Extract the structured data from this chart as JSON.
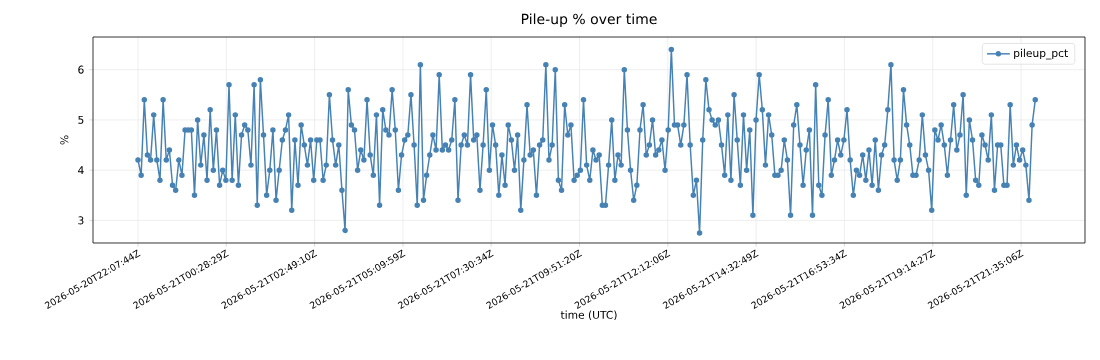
{
  "chart_data": {
    "type": "line",
    "title": "Pile-up % over time",
    "xlabel": "time (UTC)",
    "ylabel": "%",
    "xlim": [
      "2026-05-20T20:56",
      "2026-05-21T23:17"
    ],
    "ylim": [
      2.55,
      6.65
    ],
    "xticks": [
      {
        "value": "2026-05-20T22:07:44",
        "label": "2026-05-20T22:07:44Z"
      },
      {
        "value": "2026-05-21T00:28:29",
        "label": "2026-05-21T00:28:29Z"
      },
      {
        "value": "2026-05-21T02:49:10",
        "label": "2026-05-21T02:49:10Z"
      },
      {
        "value": "2026-05-21T05:09:59",
        "label": "2026-05-21T05:09:59Z"
      },
      {
        "value": "2026-05-21T07:30:34",
        "label": "2026-05-21T07:30:34Z"
      },
      {
        "value": "2026-05-21T09:51:20",
        "label": "2026-05-21T09:51:20Z"
      },
      {
        "value": "2026-05-21T12:12:06",
        "label": "2026-05-21T12:12:06Z"
      },
      {
        "value": "2026-05-21T14:32:49",
        "label": "2026-05-21T14:32:49Z"
      },
      {
        "value": "2026-05-21T16:53:34",
        "label": "2026-05-21T16:53:34Z"
      },
      {
        "value": "2026-05-21T19:14:27",
        "label": "2026-05-21T19:14:27Z"
      },
      {
        "value": "2026-05-21T21:35:06",
        "label": "2026-05-21T21:35:06Z"
      }
    ],
    "yticks": [
      3,
      4,
      5,
      6
    ],
    "grid": true,
    "legend": "top right",
    "marker": "circle",
    "line_style": "solid",
    "x": [
      "2026-05-20T22:07:44",
      "2026-05-20T22:12:44",
      "2026-05-20T22:17:44",
      "2026-05-20T22:22:44",
      "2026-05-20T22:27:44",
      "2026-05-20T22:32:44",
      "2026-05-20T22:37:44",
      "2026-05-20T22:42:44",
      "2026-05-20T22:47:44",
      "2026-05-20T22:52:44",
      "2026-05-20T22:57:44",
      "2026-05-20T23:02:44",
      "2026-05-20T23:07:44",
      "2026-05-20T23:12:44",
      "2026-05-20T23:17:44",
      "2026-05-20T23:22:44",
      "2026-05-20T23:27:44",
      "2026-05-20T23:32:44",
      "2026-05-20T23:37:44",
      "2026-05-20T23:42:44",
      "2026-05-20T23:47:44",
      "2026-05-20T23:52:44",
      "2026-05-20T23:57:44",
      "2026-05-21T00:02:44",
      "2026-05-21T00:07:44",
      "2026-05-21T00:12:44",
      "2026-05-21T00:17:44",
      "2026-05-21T00:22:44",
      "2026-05-21T00:27:44",
      "2026-05-21T00:32:44",
      "2026-05-21T00:37:44",
      "2026-05-21T00:42:44",
      "2026-05-21T00:47:44",
      "2026-05-21T00:52:44",
      "2026-05-21T00:57:44",
      "2026-05-21T01:02:44",
      "2026-05-21T01:07:44",
      "2026-05-21T01:12:44",
      "2026-05-21T01:17:44",
      "2026-05-21T01:22:44",
      "2026-05-21T01:27:44",
      "2026-05-21T01:32:44",
      "2026-05-21T01:37:44",
      "2026-05-21T01:42:44",
      "2026-05-21T01:47:44",
      "2026-05-21T01:52:44",
      "2026-05-21T01:57:44",
      "2026-05-21T02:02:44",
      "2026-05-21T02:07:44",
      "2026-05-21T02:12:44",
      "2026-05-21T02:17:44",
      "2026-05-21T02:22:44",
      "2026-05-21T02:27:44",
      "2026-05-21T02:32:44",
      "2026-05-21T02:37:44",
      "2026-05-21T02:42:44",
      "2026-05-21T02:47:44",
      "2026-05-21T02:52:44",
      "2026-05-21T02:57:44",
      "2026-05-21T03:02:44",
      "2026-05-21T03:07:44",
      "2026-05-21T03:12:44",
      "2026-05-21T03:17:44",
      "2026-05-21T03:22:44",
      "2026-05-21T03:27:44",
      "2026-05-21T03:32:44",
      "2026-05-21T03:37:44",
      "2026-05-21T03:42:44",
      "2026-05-21T03:47:44",
      "2026-05-21T03:52:44",
      "2026-05-21T03:57:44",
      "2026-05-21T04:02:44",
      "2026-05-21T04:07:44",
      "2026-05-21T04:12:44",
      "2026-05-21T04:17:44",
      "2026-05-21T04:22:44",
      "2026-05-21T04:27:44",
      "2026-05-21T04:32:44",
      "2026-05-21T04:37:44",
      "2026-05-21T04:42:44",
      "2026-05-21T04:47:44",
      "2026-05-21T04:52:44",
      "2026-05-21T04:57:44",
      "2026-05-21T05:02:44",
      "2026-05-21T05:07:44",
      "2026-05-21T05:12:44",
      "2026-05-21T05:17:44",
      "2026-05-21T05:22:44",
      "2026-05-21T05:27:44",
      "2026-05-21T05:32:44",
      "2026-05-21T05:37:44",
      "2026-05-21T05:42:44",
      "2026-05-21T05:47:44",
      "2026-05-21T05:52:44",
      "2026-05-21T05:57:44",
      "2026-05-21T06:02:44",
      "2026-05-21T06:07:44",
      "2026-05-21T06:12:44",
      "2026-05-21T06:17:44",
      "2026-05-21T06:22:44",
      "2026-05-21T06:27:44",
      "2026-05-21T06:32:44",
      "2026-05-21T06:37:44",
      "2026-05-21T06:42:44",
      "2026-05-21T06:47:44",
      "2026-05-21T06:52:44",
      "2026-05-21T06:57:44",
      "2026-05-21T07:02:44",
      "2026-05-21T07:07:44",
      "2026-05-21T07:12:44",
      "2026-05-21T07:17:44",
      "2026-05-21T07:22:44",
      "2026-05-21T07:27:44",
      "2026-05-21T07:32:44",
      "2026-05-21T07:37:44",
      "2026-05-21T07:42:44",
      "2026-05-21T07:47:44",
      "2026-05-21T07:52:44",
      "2026-05-21T07:57:44",
      "2026-05-21T08:02:44",
      "2026-05-21T08:07:44",
      "2026-05-21T08:12:44",
      "2026-05-21T08:17:44",
      "2026-05-21T08:22:44",
      "2026-05-21T08:27:44",
      "2026-05-21T08:32:44",
      "2026-05-21T08:37:44",
      "2026-05-21T08:42:44",
      "2026-05-21T08:47:44",
      "2026-05-21T08:52:44",
      "2026-05-21T08:57:44",
      "2026-05-21T09:02:44",
      "2026-05-21T09:07:44",
      "2026-05-21T09:12:44",
      "2026-05-21T09:17:44",
      "2026-05-21T09:22:44",
      "2026-05-21T09:27:44",
      "2026-05-21T09:32:44",
      "2026-05-21T09:37:44",
      "2026-05-21T09:42:44",
      "2026-05-21T09:47:44",
      "2026-05-21T09:52:44",
      "2026-05-21T09:57:44",
      "2026-05-21T10:02:44",
      "2026-05-21T10:07:44",
      "2026-05-21T10:12:44",
      "2026-05-21T10:17:44",
      "2026-05-21T10:22:44",
      "2026-05-21T10:27:44",
      "2026-05-21T10:32:44",
      "2026-05-21T10:37:44",
      "2026-05-21T10:42:44",
      "2026-05-21T10:47:44",
      "2026-05-21T10:52:44",
      "2026-05-21T10:57:44",
      "2026-05-21T11:02:44",
      "2026-05-21T11:07:44",
      "2026-05-21T11:12:44",
      "2026-05-21T11:17:44",
      "2026-05-21T11:22:44",
      "2026-05-21T11:27:44",
      "2026-05-21T11:32:44",
      "2026-05-21T11:37:44",
      "2026-05-21T11:42:44",
      "2026-05-21T11:47:44",
      "2026-05-21T11:52:44",
      "2026-05-21T11:57:44",
      "2026-05-21T12:02:44",
      "2026-05-21T12:07:44",
      "2026-05-21T12:12:44",
      "2026-05-21T12:17:44",
      "2026-05-21T12:22:44",
      "2026-05-21T12:27:44",
      "2026-05-21T12:32:44",
      "2026-05-21T12:37:44",
      "2026-05-21T12:42:44",
      "2026-05-21T12:47:44",
      "2026-05-21T12:52:44",
      "2026-05-21T12:57:44",
      "2026-05-21T13:02:44",
      "2026-05-21T13:07:44",
      "2026-05-21T13:12:44",
      "2026-05-21T13:17:44",
      "2026-05-21T13:22:44",
      "2026-05-21T13:27:44",
      "2026-05-21T13:32:44",
      "2026-05-21T13:37:44",
      "2026-05-21T13:42:44",
      "2026-05-21T13:47:44",
      "2026-05-21T13:52:44",
      "2026-05-21T13:57:44",
      "2026-05-21T14:02:44",
      "2026-05-21T14:07:44",
      "2026-05-21T14:12:44",
      "2026-05-21T14:17:44",
      "2026-05-21T14:22:44",
      "2026-05-21T14:27:44",
      "2026-05-21T14:32:44",
      "2026-05-21T14:37:44",
      "2026-05-21T14:42:44",
      "2026-05-21T14:47:44",
      "2026-05-21T14:52:44",
      "2026-05-21T14:57:44",
      "2026-05-21T15:02:44",
      "2026-05-21T15:07:44",
      "2026-05-21T15:12:44",
      "2026-05-21T15:17:44",
      "2026-05-21T15:22:44",
      "2026-05-21T15:27:44",
      "2026-05-21T15:32:44",
      "2026-05-21T15:37:44",
      "2026-05-21T15:42:44",
      "2026-05-21T15:47:44",
      "2026-05-21T15:52:44",
      "2026-05-21T15:57:44",
      "2026-05-21T16:02:44",
      "2026-05-21T16:07:44",
      "2026-05-21T16:12:44",
      "2026-05-21T16:17:44",
      "2026-05-21T16:22:44",
      "2026-05-21T16:27:44",
      "2026-05-21T16:32:44",
      "2026-05-21T16:37:44",
      "2026-05-21T16:42:44",
      "2026-05-21T16:47:44",
      "2026-05-21T16:52:44",
      "2026-05-21T16:57:44",
      "2026-05-21T17:02:44",
      "2026-05-21T17:07:44",
      "2026-05-21T17:12:44",
      "2026-05-21T17:17:44",
      "2026-05-21T17:22:44",
      "2026-05-21T17:27:44",
      "2026-05-21T17:32:44",
      "2026-05-21T17:37:44",
      "2026-05-21T17:42:44",
      "2026-05-21T17:47:44",
      "2026-05-21T17:52:44",
      "2026-05-21T17:57:44",
      "2026-05-21T18:02:44",
      "2026-05-21T18:07:44",
      "2026-05-21T18:12:44",
      "2026-05-21T18:17:44",
      "2026-05-21T18:22:44",
      "2026-05-21T18:27:44",
      "2026-05-21T18:32:44",
      "2026-05-21T18:37:44",
      "2026-05-21T18:42:44",
      "2026-05-21T18:47:44",
      "2026-05-21T18:52:44",
      "2026-05-21T18:57:44",
      "2026-05-21T19:02:44",
      "2026-05-21T19:07:44",
      "2026-05-21T19:12:44",
      "2026-05-21T19:17:44",
      "2026-05-21T19:22:44",
      "2026-05-21T19:27:44",
      "2026-05-21T19:32:44",
      "2026-05-21T19:37:44",
      "2026-05-21T19:42:44",
      "2026-05-21T19:47:44",
      "2026-05-21T19:52:44",
      "2026-05-21T19:57:44",
      "2026-05-21T20:02:44",
      "2026-05-21T20:07:44",
      "2026-05-21T20:12:44",
      "2026-05-21T20:17:44",
      "2026-05-21T20:22:44",
      "2026-05-21T20:27:44",
      "2026-05-21T20:32:44",
      "2026-05-21T20:37:44",
      "2026-05-21T20:42:44",
      "2026-05-21T20:47:44",
      "2026-05-21T20:52:44",
      "2026-05-21T20:57:44",
      "2026-05-21T21:02:44",
      "2026-05-21T21:07:44",
      "2026-05-21T21:12:44",
      "2026-05-21T21:17:44",
      "2026-05-21T21:22:44",
      "2026-05-21T21:27:44",
      "2026-05-21T21:32:44",
      "2026-05-21T21:37:44",
      "2026-05-21T21:42:44",
      "2026-05-21T21:47:44",
      "2026-05-21T21:52:44",
      "2026-05-21T21:57:44"
    ],
    "series": [
      {
        "name": "pileup_pct",
        "color": "#4682b4",
        "values": [
          4.2,
          3.9,
          5.4,
          4.3,
          4.2,
          5.1,
          4.2,
          3.8,
          5.4,
          4.2,
          4.4,
          3.7,
          3.6,
          4.2,
          3.9,
          4.8,
          4.8,
          4.8,
          3.5,
          5.0,
          4.1,
          4.7,
          3.8,
          5.2,
          4.0,
          4.8,
          3.7,
          4.0,
          3.8,
          5.7,
          3.8,
          5.1,
          3.7,
          4.7,
          4.9,
          4.8,
          4.1,
          5.7,
          3.3,
          5.8,
          4.7,
          3.5,
          4.0,
          4.8,
          3.4,
          4.0,
          4.6,
          4.8,
          5.1,
          3.2,
          4.6,
          3.7,
          4.9,
          4.5,
          4.1,
          4.6,
          3.8,
          4.6,
          4.6,
          3.8,
          4.1,
          5.5,
          4.6,
          4.1,
          4.5,
          3.6,
          2.8,
          5.6,
          4.9,
          4.8,
          4.0,
          4.4,
          4.2,
          5.4,
          4.3,
          3.9,
          5.1,
          3.3,
          5.2,
          4.8,
          4.7,
          5.6,
          4.8,
          3.6,
          4.3,
          4.6,
          4.7,
          5.5,
          4.5,
          3.3,
          6.1,
          3.4,
          3.9,
          4.3,
          4.7,
          4.4,
          5.9,
          4.4,
          4.5,
          4.4,
          4.6,
          5.4,
          3.4,
          4.5,
          4.7,
          4.5,
          5.9,
          4.6,
          4.7,
          3.6,
          4.5,
          5.6,
          4.0,
          4.9,
          4.5,
          3.5,
          4.3,
          3.7,
          4.9,
          4.6,
          4.0,
          4.7,
          3.2,
          4.2,
          5.3,
          4.3,
          4.4,
          3.5,
          4.5,
          4.6,
          6.1,
          4.2,
          4.5,
          6.0,
          3.8,
          3.6,
          5.3,
          4.7,
          4.9,
          3.8,
          3.9,
          4.0,
          5.4,
          4.1,
          3.8,
          4.4,
          4.2,
          4.3,
          3.3,
          3.3,
          4.1,
          5.0,
          3.8,
          4.3,
          4.1,
          6.0,
          4.8,
          4.0,
          3.4,
          3.7,
          4.8,
          5.3,
          4.3,
          4.5,
          5.0,
          4.3,
          4.4,
          4.6,
          4.0,
          4.8,
          6.4,
          4.9,
          4.9,
          4.5,
          4.9,
          5.9,
          4.5,
          3.5,
          3.8,
          2.75,
          4.6,
          5.8,
          5.2,
          5.0,
          4.9,
          5.0,
          4.5,
          3.9,
          5.1,
          3.8,
          5.5,
          4.6,
          3.7,
          5.1,
          4.0,
          4.8,
          3.1,
          5.0,
          5.9,
          5.2,
          4.1,
          5.1,
          4.7,
          3.9,
          3.9,
          4.0,
          4.6,
          4.2,
          3.1,
          4.9,
          5.3,
          4.5,
          3.7,
          4.4,
          4.8,
          3.1,
          5.7,
          3.7,
          3.5,
          4.7,
          5.4,
          3.9,
          4.2,
          4.6,
          4.3,
          4.6,
          5.2,
          4.2,
          3.5,
          4.0,
          3.9,
          4.3,
          3.8,
          4.4,
          3.7,
          4.6,
          3.6,
          4.3,
          4.5,
          5.2,
          6.1,
          4.2,
          3.8,
          4.2,
          5.6,
          4.9,
          4.5,
          3.9,
          3.9,
          4.2,
          5.1,
          4.3,
          4.0,
          3.2,
          4.8,
          4.6,
          4.9,
          4.5,
          3.9,
          4.6,
          5.3,
          4.4,
          4.7,
          5.5,
          3.5,
          5.0,
          4.6,
          3.8,
          3.7,
          4.7,
          4.5,
          4.2,
          5.1,
          3.6,
          4.5,
          4.5,
          3.7,
          3.7,
          5.3,
          4.1,
          4.5,
          4.2,
          4.4,
          4.1,
          3.4,
          4.9,
          5.4
        ]
      }
    ]
  }
}
